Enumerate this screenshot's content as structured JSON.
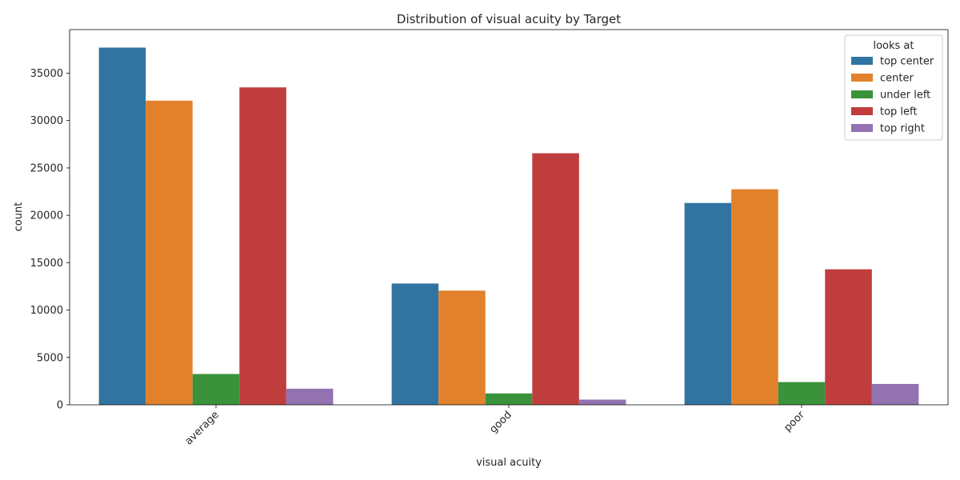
{
  "chart_data": {
    "type": "bar",
    "title": "Distribution of visual acuity by Target",
    "xlabel": "visual acuity",
    "ylabel": "count",
    "categories": [
      "average",
      "good",
      "poor"
    ],
    "ylim": [
      0,
      39600
    ],
    "yticks": [
      0,
      5000,
      10000,
      15000,
      20000,
      25000,
      30000,
      35000
    ],
    "ytick_labels": [
      "0",
      "5000",
      "10000",
      "15000",
      "20000",
      "25000",
      "30000",
      "35000"
    ],
    "grid": false,
    "legend": {
      "title": "looks at",
      "placement": "top-right"
    },
    "series": [
      {
        "name": "top center",
        "color": "#3274a1",
        "values": [
          37700,
          12800,
          21300
        ]
      },
      {
        "name": "center",
        "color": "#e1812c",
        "values": [
          32100,
          12050,
          22750
        ]
      },
      {
        "name": "under left",
        "color": "#3a923a",
        "values": [
          3250,
          1200,
          2400
        ]
      },
      {
        "name": "top left",
        "color": "#c03d3e",
        "values": [
          33500,
          26550,
          14300
        ]
      },
      {
        "name": "top right",
        "color": "#9372b2",
        "values": [
          1700,
          550,
          2200
        ]
      }
    ]
  }
}
